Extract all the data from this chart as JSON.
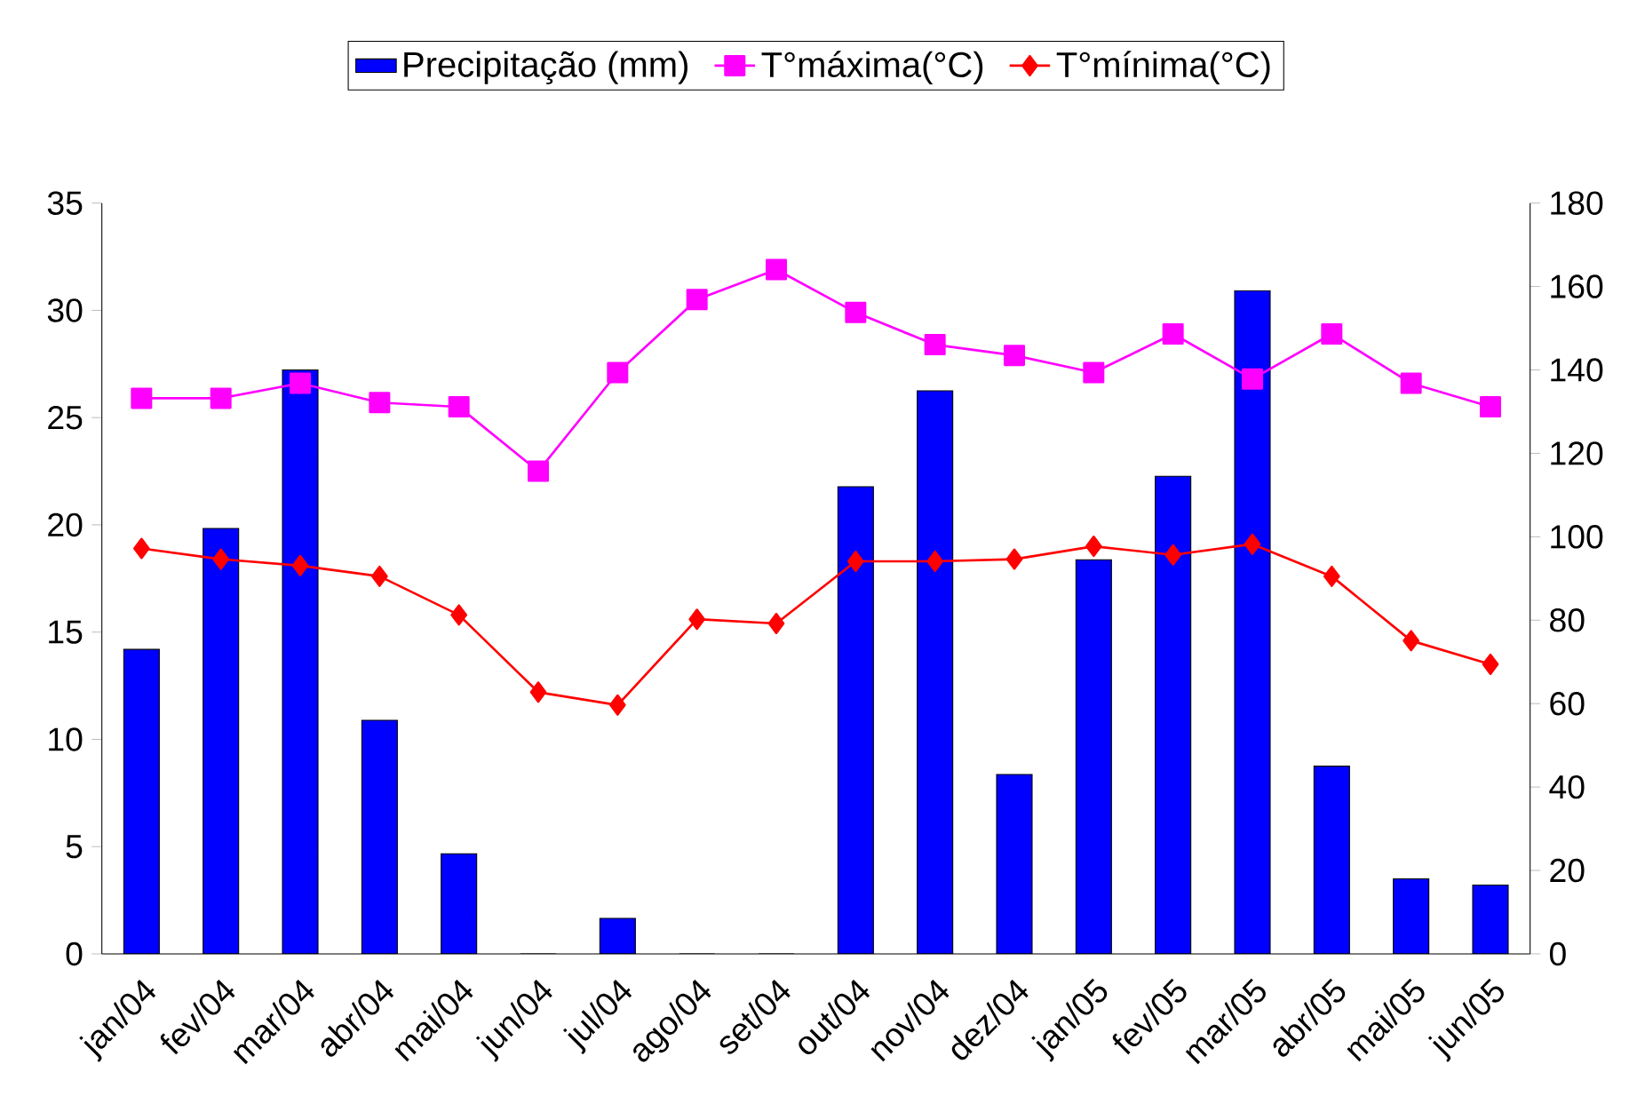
{
  "chart_data": {
    "type": "line",
    "categories": [
      "jan/04",
      "fev/04",
      "mar/04",
      "abr/04",
      "mai/04",
      "jun/04",
      "jul/04",
      "ago/04",
      "set/04",
      "out/04",
      "nov/04",
      "dez/04",
      "jan/05",
      "fev/05",
      "mar/05",
      "abr/05",
      "mai/05",
      "jun/05"
    ],
    "series": [
      {
        "name": "Precipitação (mm)",
        "type": "bar",
        "axis": "y2",
        "color": "#0000ff",
        "values": [
          73,
          102,
          140,
          56,
          24,
          0,
          8.5,
          0,
          0,
          112,
          135,
          43,
          94.5,
          114.5,
          159,
          45,
          18,
          16.5
        ]
      },
      {
        "name": "T°máxima(°C)",
        "color": "#ff00ff",
        "marker": "square",
        "values": [
          25.9,
          25.9,
          26.6,
          25.7,
          25.5,
          22.5,
          27.1,
          30.5,
          31.9,
          29.9,
          28.4,
          27.9,
          27.1,
          28.9,
          26.8,
          28.9,
          26.6,
          25.5
        ]
      },
      {
        "name": "T°mínima(°C)",
        "color": "#ff0000",
        "marker": "diamond",
        "values": [
          18.9,
          18.4,
          18.1,
          17.6,
          15.8,
          12.2,
          11.6,
          15.6,
          15.4,
          18.3,
          18.3,
          18.4,
          19.0,
          18.6,
          19.1,
          17.6,
          14.6,
          13.5
        ]
      }
    ],
    "ylim": [
      0,
      35
    ],
    "yticks": [
      0,
      5,
      10,
      15,
      20,
      25,
      30,
      35
    ],
    "y2lim": [
      0,
      180
    ],
    "y2ticks": [
      0,
      20,
      40,
      60,
      80,
      100,
      120,
      140,
      160,
      180
    ],
    "legend": "top",
    "grid": false,
    "line_style": "solid"
  }
}
